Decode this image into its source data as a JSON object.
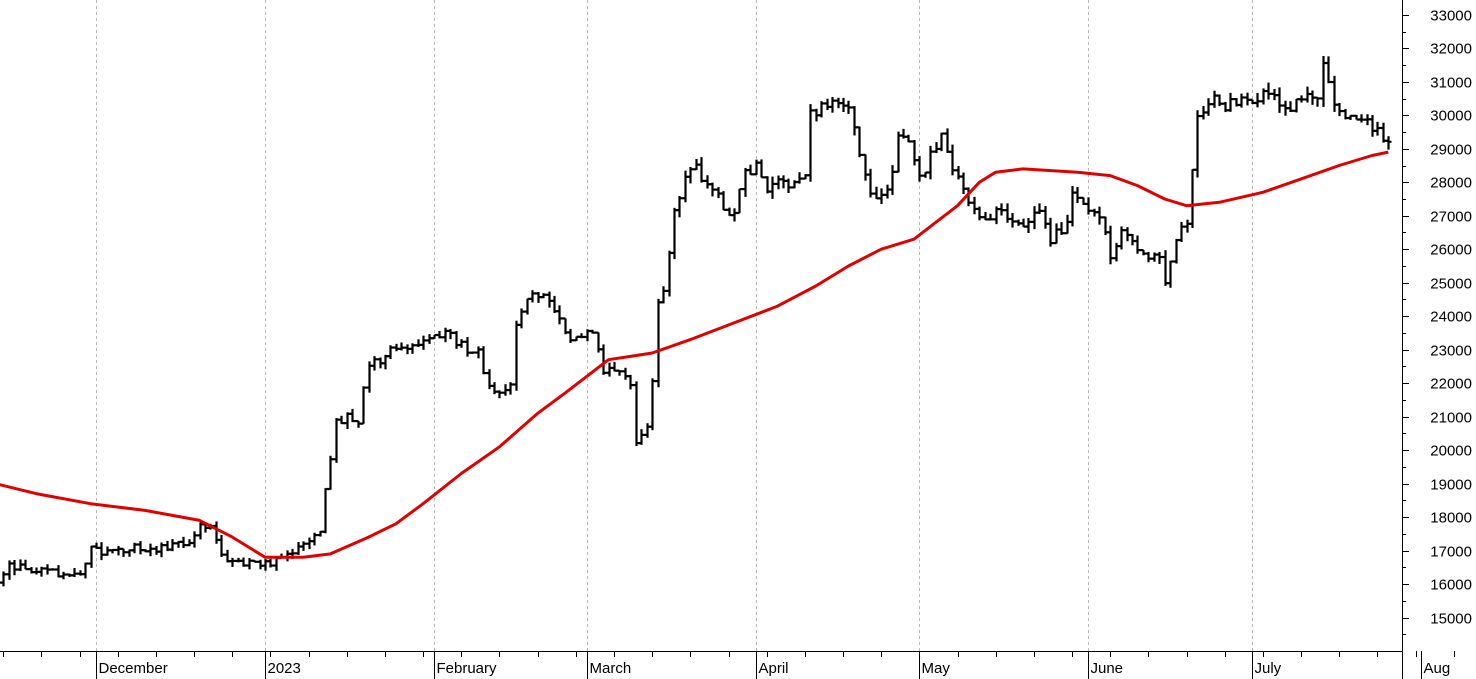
{
  "chart_data": {
    "type": "ohlc",
    "title": "",
    "xlabel": "",
    "ylabel": "",
    "x_range": [
      "2022-11-02",
      "2023-08-12"
    ],
    "ylim": [
      14000,
      33300
    ],
    "y_axis_side": "right",
    "y_ticks": [
      15000,
      16000,
      17000,
      18000,
      19000,
      20000,
      21000,
      22000,
      23000,
      24000,
      25000,
      26000,
      27000,
      28000,
      29000,
      30000,
      31000,
      32000,
      33000
    ],
    "x_months": [
      {
        "label": "ber",
        "date": "2022-11-01"
      },
      {
        "label": "December",
        "date": "2022-12-01"
      },
      {
        "label": "2023",
        "date": "2023-01-01"
      },
      {
        "label": "February",
        "date": "2023-02-01"
      },
      {
        "label": "March",
        "date": "2023-03-01"
      },
      {
        "label": "April",
        "date": "2023-04-01"
      },
      {
        "label": "May",
        "date": "2023-05-01"
      },
      {
        "label": "June",
        "date": "2023-06-01"
      },
      {
        "label": "July",
        "date": "2023-07-01"
      },
      {
        "label": "Aug",
        "date": "2023-08-01"
      }
    ],
    "gridlines": "vertical-dashed",
    "colors": {
      "bars": "#000000",
      "moving_average": "#e00000",
      "grid": "#b8b8b8"
    },
    "price_path": [
      [
        "2022-11-02",
        16600
      ],
      [
        "2022-11-05",
        16900
      ],
      [
        "2022-11-08",
        16800
      ],
      [
        "2022-11-10",
        16200
      ],
      [
        "2022-11-12",
        15800
      ],
      [
        "2022-11-15",
        16500
      ],
      [
        "2022-11-18",
        16500
      ],
      [
        "2022-11-20",
        16400
      ],
      [
        "2022-11-24",
        16300
      ],
      [
        "2022-11-28",
        16400
      ],
      [
        "2022-11-30",
        17000
      ],
      [
        "2022-12-03",
        17000
      ],
      [
        "2022-12-06",
        17000
      ],
      [
        "2022-12-09",
        17100
      ],
      [
        "2022-12-12",
        17000
      ],
      [
        "2022-12-15",
        17200
      ],
      [
        "2022-12-18",
        17200
      ],
      [
        "2022-12-20",
        17900
      ],
      [
        "2022-12-22",
        17700
      ],
      [
        "2022-12-24",
        16800
      ],
      [
        "2022-12-28",
        16600
      ],
      [
        "2023-01-01",
        16600
      ],
      [
        "2023-01-03",
        16700
      ],
      [
        "2023-01-06",
        16900
      ],
      [
        "2023-01-09",
        17200
      ],
      [
        "2023-01-11",
        17500
      ],
      [
        "2023-01-12",
        18800
      ],
      [
        "2023-01-14",
        20800
      ],
      [
        "2023-01-16",
        21000
      ],
      [
        "2023-01-18",
        20900
      ],
      [
        "2023-01-20",
        22600
      ],
      [
        "2023-01-22",
        22700
      ],
      [
        "2023-01-25",
        23100
      ],
      [
        "2023-01-27",
        23000
      ],
      [
        "2023-01-30",
        23400
      ],
      [
        "2023-02-01",
        23400
      ],
      [
        "2023-02-03",
        23600
      ],
      [
        "2023-02-06",
        23100
      ],
      [
        "2023-02-09",
        22900
      ],
      [
        "2023-02-11",
        21900
      ],
      [
        "2023-02-13",
        21700
      ],
      [
        "2023-02-15",
        21900
      ],
      [
        "2023-02-16",
        23700
      ],
      [
        "2023-02-18",
        24600
      ],
      [
        "2023-02-20",
        24700
      ],
      [
        "2023-02-22",
        24600
      ],
      [
        "2023-02-24",
        23800
      ],
      [
        "2023-02-26",
        23400
      ],
      [
        "2023-02-28",
        23400
      ],
      [
        "2023-03-02",
        23500
      ],
      [
        "2023-03-04",
        22400
      ],
      [
        "2023-03-07",
        22300
      ],
      [
        "2023-03-09",
        21900
      ],
      [
        "2023-03-10",
        20300
      ],
      [
        "2023-03-12",
        20600
      ],
      [
        "2023-03-13",
        22000
      ],
      [
        "2023-03-14",
        24300
      ],
      [
        "2023-03-15",
        24900
      ],
      [
        "2023-03-17",
        27100
      ],
      [
        "2023-03-19",
        28100
      ],
      [
        "2023-03-21",
        28400
      ],
      [
        "2023-03-23",
        27800
      ],
      [
        "2023-03-25",
        27500
      ],
      [
        "2023-03-28",
        27000
      ],
      [
        "2023-03-30",
        28300
      ],
      [
        "2023-04-01",
        28500
      ],
      [
        "2023-04-03",
        27800
      ],
      [
        "2023-04-06",
        28000
      ],
      [
        "2023-04-08",
        27900
      ],
      [
        "2023-04-10",
        28300
      ],
      [
        "2023-04-11",
        30000
      ],
      [
        "2023-04-14",
        30400
      ],
      [
        "2023-04-16",
        30400
      ],
      [
        "2023-04-18",
        30300
      ],
      [
        "2023-04-20",
        28800
      ],
      [
        "2023-04-22",
        27800
      ],
      [
        "2023-04-24",
        27500
      ],
      [
        "2023-04-26",
        28300
      ],
      [
        "2023-04-27",
        29400
      ],
      [
        "2023-04-29",
        29300
      ],
      [
        "2023-05-01",
        28100
      ],
      [
        "2023-05-03",
        28800
      ],
      [
        "2023-05-05",
        29500
      ],
      [
        "2023-05-07",
        28400
      ],
      [
        "2023-05-09",
        27700
      ],
      [
        "2023-05-12",
        26800
      ],
      [
        "2023-05-15",
        27100
      ],
      [
        "2023-05-18",
        26900
      ],
      [
        "2023-05-21",
        26800
      ],
      [
        "2023-05-23",
        27200
      ],
      [
        "2023-05-25",
        26300
      ],
      [
        "2023-05-28",
        26800
      ],
      [
        "2023-05-29",
        27700
      ],
      [
        "2023-05-30",
        27600
      ],
      [
        "2023-06-01",
        27200
      ],
      [
        "2023-06-03",
        27100
      ],
      [
        "2023-06-05",
        25800
      ],
      [
        "2023-06-07",
        26500
      ],
      [
        "2023-06-09",
        26400
      ],
      [
        "2023-06-11",
        25800
      ],
      [
        "2023-06-14",
        25800
      ],
      [
        "2023-06-15",
        25100
      ],
      [
        "2023-06-17",
        26400
      ],
      [
        "2023-06-19",
        26800
      ],
      [
        "2023-06-20",
        28300
      ],
      [
        "2023-06-21",
        30000
      ],
      [
        "2023-06-24",
        30500
      ],
      [
        "2023-06-26",
        30300
      ],
      [
        "2023-06-29",
        30400
      ],
      [
        "2023-07-02",
        30600
      ],
      [
        "2023-07-04",
        30700
      ],
      [
        "2023-07-06",
        30300
      ],
      [
        "2023-07-08",
        30200
      ],
      [
        "2023-07-11",
        30600
      ],
      [
        "2023-07-13",
        30400
      ],
      [
        "2023-07-14",
        31400
      ],
      [
        "2023-07-16",
        30300
      ],
      [
        "2023-07-19",
        29900
      ],
      [
        "2023-07-22",
        29800
      ],
      [
        "2023-07-25",
        29300
      ],
      [
        "2023-07-26",
        29200
      ]
    ],
    "moving_average": [
      [
        "2022-11-02",
        19400
      ],
      [
        "2022-11-10",
        19100
      ],
      [
        "2022-11-20",
        18700
      ],
      [
        "2022-11-30",
        18400
      ],
      [
        "2022-12-10",
        18200
      ],
      [
        "2022-12-20",
        17900
      ],
      [
        "2022-12-26",
        17400
      ],
      [
        "2022-12-30",
        17000
      ],
      [
        "2023-01-01",
        16800
      ],
      [
        "2023-01-08",
        16800
      ],
      [
        "2023-01-13",
        16900
      ],
      [
        "2023-01-20",
        17400
      ],
      [
        "2023-01-25",
        17800
      ],
      [
        "2023-01-30",
        18400
      ],
      [
        "2023-02-06",
        19300
      ],
      [
        "2023-02-13",
        20100
      ],
      [
        "2023-02-20",
        21100
      ],
      [
        "2023-02-25",
        21700
      ],
      [
        "2023-03-01",
        22200
      ],
      [
        "2023-03-05",
        22700
      ],
      [
        "2023-03-09",
        22800
      ],
      [
        "2023-03-13",
        22900
      ],
      [
        "2023-03-20",
        23300
      ],
      [
        "2023-03-28",
        23800
      ],
      [
        "2023-04-05",
        24300
      ],
      [
        "2023-04-12",
        24900
      ],
      [
        "2023-04-18",
        25500
      ],
      [
        "2023-04-24",
        26000
      ],
      [
        "2023-04-30",
        26300
      ],
      [
        "2023-05-04",
        26800
      ],
      [
        "2023-05-08",
        27300
      ],
      [
        "2023-05-12",
        28000
      ],
      [
        "2023-05-15",
        28300
      ],
      [
        "2023-05-20",
        28400
      ],
      [
        "2023-05-30",
        28300
      ],
      [
        "2023-06-05",
        28200
      ],
      [
        "2023-06-10",
        27900
      ],
      [
        "2023-06-15",
        27500
      ],
      [
        "2023-06-19",
        27300
      ],
      [
        "2023-06-25",
        27400
      ],
      [
        "2023-07-03",
        27700
      ],
      [
        "2023-07-10",
        28100
      ],
      [
        "2023-07-17",
        28500
      ],
      [
        "2023-07-23",
        28800
      ],
      [
        "2023-07-26",
        28900
      ]
    ]
  }
}
